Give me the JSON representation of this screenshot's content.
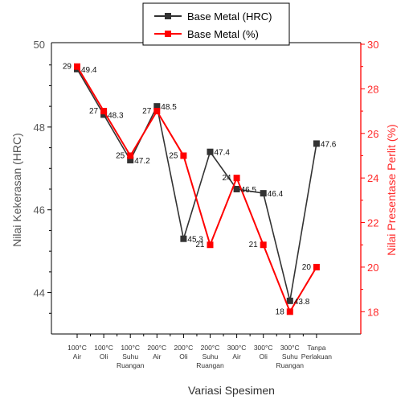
{
  "chart_data": {
    "type": "line",
    "categories": [
      [
        "100°C",
        "Air"
      ],
      [
        "100°C",
        "Oli"
      ],
      [
        "100°C",
        "Suhu",
        "Ruangan"
      ],
      [
        "200°C",
        "Air"
      ],
      [
        "200°C",
        "Oli"
      ],
      [
        "200°C",
        "Suhu",
        "Ruangan"
      ],
      [
        "300°C",
        "Air"
      ],
      [
        "300°C",
        "Oli"
      ],
      [
        "300°C",
        "Suhu",
        "Ruangan"
      ],
      [
        "Tanpa",
        "Perlakuan"
      ]
    ],
    "series": [
      {
        "name": "Base Metal (HRC)",
        "axis": "left",
        "color": "#333333",
        "marker": "square",
        "values": [
          49.4,
          48.3,
          47.2,
          48.5,
          45.3,
          47.4,
          46.5,
          46.4,
          43.8,
          47.6
        ],
        "labels": [
          "49.4",
          "48.3",
          "47.2",
          "48.5",
          "45.3",
          "47.4",
          "46.5",
          "46.4",
          "43.8",
          "47.6"
        ]
      },
      {
        "name": "Base Metal (%)",
        "axis": "right",
        "color": "#ff0000",
        "marker": "square",
        "values": [
          29,
          27,
          25,
          27,
          25,
          21,
          24,
          21,
          18,
          20
        ],
        "labels": [
          "29",
          "27",
          "25",
          "27",
          "25",
          "21",
          "24",
          "21",
          "18",
          "20"
        ]
      }
    ],
    "xlabel": "Variasi Spesimen",
    "ylabel": "Nilai Kekerasan (HRC)",
    "ylabel_right": "Nilai Presentase Perlit (%)",
    "ylim": [
      43,
      50
    ],
    "yticks": [
      "44",
      "46",
      "48",
      "50"
    ],
    "ylim_right": [
      17,
      30
    ],
    "yticks_right": [
      "18",
      "20",
      "22",
      "24",
      "26",
      "28",
      "30"
    ],
    "grid": false,
    "legend_position": "top-center"
  }
}
